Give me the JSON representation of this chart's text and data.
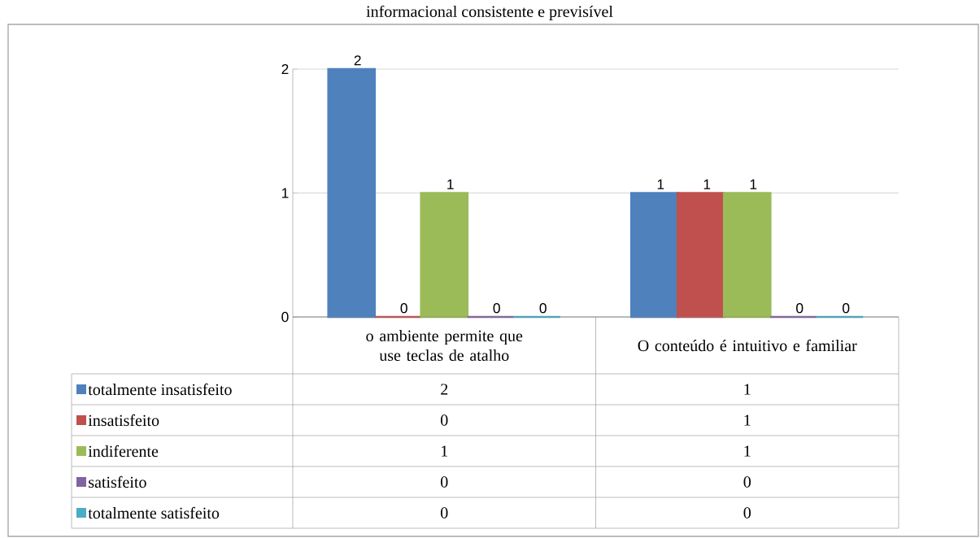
{
  "chart_data": {
    "type": "bar",
    "title": "informacional consistente e previsível",
    "categories": [
      "o ambiente permite que use teclas de atalho",
      "O conteúdo é intuitivo e familiar"
    ],
    "series": [
      {
        "name": "totalmente insatisfeito",
        "color": "#4f81bd",
        "values": [
          2,
          1
        ],
        "value_labels": [
          "2",
          "1"
        ]
      },
      {
        "name": "insatisfeito",
        "color": "#c0504d",
        "values": [
          0,
          1
        ],
        "value_labels": [
          "0",
          "1"
        ]
      },
      {
        "name": "indiferente",
        "color": "#9bbb59",
        "values": [
          1,
          1
        ],
        "value_labels": [
          "1",
          "1"
        ]
      },
      {
        "name": "satisfeito",
        "color": "#8064a2",
        "values": [
          0,
          0
        ],
        "value_labels": [
          "0",
          "0"
        ]
      },
      {
        "name": "totalmente satisfeito",
        "color": "#4bacc6",
        "values": [
          0,
          0
        ],
        "value_labels": [
          "0",
          "0"
        ]
      }
    ],
    "ylim": [
      0,
      2
    ],
    "yticks": [
      0,
      1,
      2
    ],
    "grid": "y",
    "legend": "bottom",
    "data_labels": true
  }
}
